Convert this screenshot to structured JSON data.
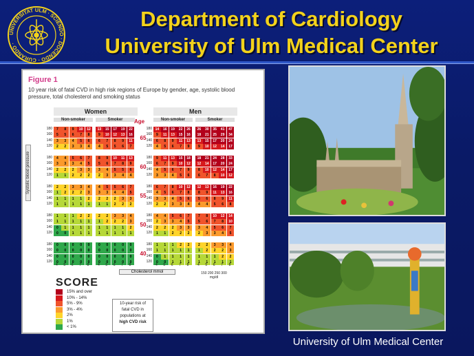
{
  "header": {
    "title_line1": "Department of Cardiology",
    "title_line2": "University of Ulm Medical Center"
  },
  "logo": {
    "ring_text": "UNIVERSITAT ULM · SCIENDO · DOCENDO · CURANDO"
  },
  "figure": {
    "label": "Figure 1",
    "description": "10 year risk of fatal CVD in high risk regions of Europe by gender, age, systolic blood pressure, total cholesterol and smoking status",
    "women": "Women",
    "men": "Men",
    "non_smoker": "Non-smoker",
    "smoker": "Smoker",
    "age_header": "Age",
    "ages": [
      "65",
      "60",
      "55",
      "50",
      "40"
    ],
    "bp_values": [
      "180",
      "160",
      "140",
      "120"
    ],
    "chol_values": [
      "4",
      "5",
      "6",
      "7",
      "8"
    ],
    "y_axis_label": "Systolic blood pressure",
    "x_axis_label": "Cholesterol mmol",
    "mgdl_ticks": "150 200 250 300",
    "mgdl_unit": "mg/dl",
    "score_logo": "SCORE",
    "legend": [
      {
        "label": "15% and over",
        "color": "#b3001b"
      },
      {
        "label": "10% - 14%",
        "color": "#d7191c"
      },
      {
        "label": "5% - 9%",
        "color": "#f0542c"
      },
      {
        "label": "3% - 4%",
        "color": "#fb9a2c"
      },
      {
        "label": "2%",
        "color": "#ffd42a"
      },
      {
        "label": "1%",
        "color": "#b6d838"
      },
      {
        "label": "< 1%",
        "color": "#2fa84b"
      }
    ],
    "note_lines": [
      "10-year risk of",
      "fatal CVD in",
      "populations at",
      "high CVD risk"
    ]
  },
  "chart_data": {
    "type": "heatmap",
    "title": "Figure 1",
    "subtitle": "10 year risk of fatal CVD in high risk regions of Europe by gender, age, systolic blood pressure, total cholesterol and smoking status",
    "xlabel": "Cholesterol mmol",
    "ylabel": "Systolic blood pressure",
    "groups": [
      "Women Non-smoker",
      "Women Smoker",
      "Men Non-smoker",
      "Men Smoker"
    ],
    "ages": [
      "65",
      "60",
      "55",
      "50",
      "40"
    ],
    "rows_per_age": [
      "180",
      "160",
      "140",
      "120"
    ],
    "columns": [
      "4",
      "5",
      "6",
      "7",
      "8"
    ],
    "grids": {
      "65": [
        [
          [
            "7",
            "8",
            "9",
            "10",
            "12"
          ],
          [
            "13",
            "15",
            "17",
            "19",
            "22"
          ],
          [
            "14",
            "16",
            "19",
            "22",
            "26"
          ],
          [
            "26",
            "30",
            "35",
            "41",
            "47"
          ]
        ],
        [
          [
            "5",
            "5",
            "6",
            "7",
            "8"
          ],
          [
            "9",
            "10",
            "12",
            "13",
            "16"
          ],
          [
            "9",
            "11",
            "13",
            "15",
            "16"
          ],
          [
            "18",
            "21",
            "25",
            "29",
            "34"
          ]
        ],
        [
          [
            "3",
            "3",
            "4",
            "5",
            "6"
          ],
          [
            "6",
            "7",
            "8",
            "9",
            "11"
          ],
          [
            "6",
            "8",
            "9",
            "11",
            "13"
          ],
          [
            "13",
            "15",
            "17",
            "20",
            "24"
          ]
        ],
        [
          [
            "2",
            "2",
            "3",
            "3",
            "4"
          ],
          [
            "4",
            "5",
            "5",
            "6",
            "7"
          ],
          [
            "4",
            "5",
            "6",
            "7",
            "9"
          ],
          [
            "9",
            "10",
            "12",
            "14",
            "17"
          ]
        ]
      ],
      "60": [
        [
          [
            "4",
            "4",
            "5",
            "6",
            "7"
          ],
          [
            "8",
            "9",
            "10",
            "11",
            "13"
          ],
          [
            "9",
            "11",
            "13",
            "15",
            "18"
          ],
          [
            "18",
            "21",
            "24",
            "28",
            "33"
          ]
        ],
        [
          [
            "3",
            "3",
            "3",
            "4",
            "5"
          ],
          [
            "5",
            "6",
            "7",
            "8",
            "9"
          ],
          [
            "6",
            "7",
            "9",
            "10",
            "12"
          ],
          [
            "12",
            "14",
            "17",
            "20",
            "24"
          ]
        ],
        [
          [
            "2",
            "2",
            "2",
            "3",
            "3"
          ],
          [
            "3",
            "4",
            "5",
            "5",
            "6"
          ],
          [
            "4",
            "5",
            "6",
            "7",
            "9"
          ],
          [
            "8",
            "10",
            "12",
            "14",
            "17"
          ]
        ],
        [
          [
            "1",
            "1",
            "2",
            "2",
            "2"
          ],
          [
            "2",
            "3",
            "3",
            "4",
            "4"
          ],
          [
            "3",
            "3",
            "4",
            "5",
            "6"
          ],
          [
            "6",
            "7",
            "8",
            "10",
            "12"
          ]
        ]
      ],
      "55": [
        [
          [
            "2",
            "2",
            "3",
            "3",
            "4"
          ],
          [
            "4",
            "5",
            "5",
            "6",
            "7"
          ],
          [
            "6",
            "7",
            "8",
            "10",
            "12"
          ],
          [
            "12",
            "13",
            "16",
            "19",
            "22"
          ]
        ],
        [
          [
            "1",
            "2",
            "2",
            "2",
            "3"
          ],
          [
            "3",
            "3",
            "4",
            "4",
            "5"
          ],
          [
            "4",
            "5",
            "6",
            "7",
            "8"
          ],
          [
            "8",
            "9",
            "11",
            "13",
            "16"
          ]
        ],
        [
          [
            "1",
            "1",
            "1",
            "1",
            "2"
          ],
          [
            "2",
            "2",
            "2",
            "3",
            "3"
          ],
          [
            "3",
            "3",
            "4",
            "5",
            "6"
          ],
          [
            "5",
            "6",
            "8",
            "9",
            "11"
          ]
        ],
        [
          [
            "1",
            "1",
            "1",
            "1",
            "1"
          ],
          [
            "1",
            "1",
            "2",
            "2",
            "2"
          ],
          [
            "2",
            "2",
            "3",
            "3",
            "4"
          ],
          [
            "4",
            "4",
            "5",
            "6",
            "8"
          ]
        ]
      ],
      "50": [
        [
          [
            "1",
            "1",
            "1",
            "2",
            "2"
          ],
          [
            "2",
            "2",
            "3",
            "3",
            "4"
          ],
          [
            "4",
            "4",
            "5",
            "6",
            "7"
          ],
          [
            "7",
            "8",
            "10",
            "12",
            "14"
          ]
        ],
        [
          [
            "1",
            "1",
            "1",
            "1",
            "1"
          ],
          [
            "1",
            "2",
            "2",
            "2",
            "3"
          ],
          [
            "2",
            "3",
            "3",
            "4",
            "5"
          ],
          [
            "5",
            "6",
            "7",
            "8",
            "10"
          ]
        ],
        [
          [
            "0",
            "1",
            "1",
            "1",
            "1"
          ],
          [
            "1",
            "1",
            "1",
            "1",
            "2"
          ],
          [
            "2",
            "2",
            "2",
            "3",
            "3"
          ],
          [
            "3",
            "4",
            "5",
            "6",
            "7"
          ]
        ],
        [
          [
            "0",
            "0",
            "1",
            "1",
            "1"
          ],
          [
            "1",
            "1",
            "1",
            "1",
            "1"
          ],
          [
            "1",
            "1",
            "2",
            "2",
            "2"
          ],
          [
            "2",
            "3",
            "3",
            "4",
            "5"
          ]
        ]
      ],
      "40": [
        [
          [
            "0",
            "0",
            "0",
            "0",
            "0"
          ],
          [
            "0",
            "0",
            "0",
            "0",
            "0"
          ],
          [
            "1",
            "1",
            "1",
            "2",
            "2"
          ],
          [
            "2",
            "2",
            "3",
            "3",
            "4"
          ]
        ],
        [
          [
            "0",
            "0",
            "0",
            "0",
            "0"
          ],
          [
            "0",
            "0",
            "0",
            "0",
            "0"
          ],
          [
            "1",
            "1",
            "1",
            "1",
            "1"
          ],
          [
            "1",
            "2",
            "2",
            "2",
            "3"
          ]
        ],
        [
          [
            "0",
            "0",
            "0",
            "0",
            "0"
          ],
          [
            "0",
            "0",
            "0",
            "0",
            "0"
          ],
          [
            "0",
            "1",
            "1",
            "1",
            "1"
          ],
          [
            "1",
            "1",
            "1",
            "2",
            "2"
          ]
        ],
        [
          [
            "0",
            "0",
            "0",
            "0",
            "0"
          ],
          [
            "0",
            "0",
            "0",
            "0",
            "0"
          ],
          [
            "0",
            "0",
            "1",
            "1",
            "1"
          ],
          [
            "1",
            "1",
            "1",
            "1",
            "1"
          ]
        ]
      ]
    }
  },
  "photos": {
    "cathedral": "cathedral-photo",
    "clinic": "clinic-photo"
  },
  "caption": "University of Ulm Medical Center"
}
